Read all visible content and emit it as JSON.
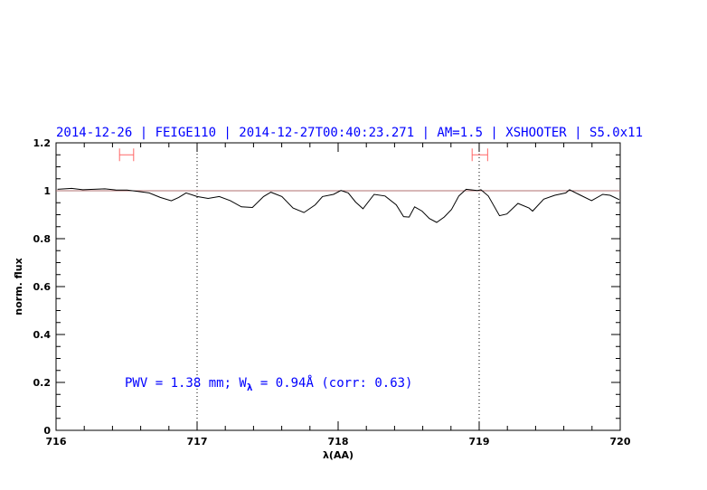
{
  "chart_data": {
    "type": "line",
    "title": "2014-12-26 | FEIGE110 | 2014-12-27T00:40:23.271 | AM=1.5 | XSHOOTER | S5.0x11",
    "xlabel": "λ(AA)",
    "ylabel": "norm. flux",
    "xlim": [
      716,
      720
    ],
    "ylim": [
      0,
      1.2
    ],
    "xticks": [
      716,
      717,
      718,
      719,
      720
    ],
    "xtick_labels": [
      "716",
      "717",
      "718",
      "719",
      "720"
    ],
    "yticks": [
      0,
      0.2,
      0.4,
      0.6,
      0.8,
      1,
      1.2
    ],
    "ytick_labels": [
      "0",
      "0.2",
      "0.4",
      "0.6",
      "0.8",
      "1",
      "1.2"
    ],
    "grid": false,
    "reference_line_y": 1,
    "vertical_dotted_lines_x": [
      717,
      719
    ],
    "annotation": {
      "text_prefix": "PWV = 1.38 mm; W",
      "subscript": "λ",
      "text_suffix": " = 0.94Å (corr: 0.63)"
    },
    "intervals": [
      {
        "x": [
          716.45,
          716.55
        ],
        "y": 1.15
      },
      {
        "x": [
          718.95,
          719.06
        ],
        "y": 1.15
      }
    ],
    "series": [
      {
        "x": [
          716.01,
          716.111,
          716.19,
          716.268,
          716.346,
          716.425,
          716.503,
          716.582,
          716.66,
          716.739,
          716.817,
          716.869,
          716.922,
          717.0,
          717.078,
          717.157,
          717.235,
          717.314,
          717.392,
          717.471,
          717.523,
          717.601,
          717.68,
          717.758,
          717.837,
          717.889,
          717.967,
          718.02,
          718.072,
          718.124,
          718.176,
          718.255,
          718.333,
          718.412,
          718.464,
          718.503,
          718.542,
          718.595,
          718.647,
          718.699,
          718.752,
          718.804,
          718.856,
          718.908,
          718.987,
          719.013,
          719.065,
          719.144,
          719.196,
          719.275,
          719.353,
          719.379,
          719.458,
          719.536,
          719.614,
          719.641,
          719.719,
          719.797,
          719.876,
          719.928,
          719.993
        ],
        "y": [
          1.006,
          1.01,
          1.004,
          1.006,
          1.008,
          1.003,
          1.003,
          0.997,
          0.991,
          0.972,
          0.958,
          0.972,
          0.991,
          0.976,
          0.968,
          0.976,
          0.959,
          0.933,
          0.93,
          0.976,
          0.994,
          0.976,
          0.928,
          0.909,
          0.941,
          0.976,
          0.985,
          1.001,
          0.991,
          0.953,
          0.925,
          0.985,
          0.978,
          0.941,
          0.892,
          0.89,
          0.933,
          0.915,
          0.884,
          0.868,
          0.89,
          0.922,
          0.978,
          1.006,
          1.001,
          1.004,
          0.978,
          0.896,
          0.903,
          0.947,
          0.928,
          0.915,
          0.965,
          0.981,
          0.991,
          1.004,
          0.981,
          0.959,
          0.985,
          0.981,
          0.963
        ],
        "color": "#000000"
      }
    ],
    "colors": {
      "title": "#0000ff",
      "annotation": "#0000ff",
      "intervals": "#ff6666",
      "reference_line": "#b07070",
      "axes": "#000000"
    }
  }
}
